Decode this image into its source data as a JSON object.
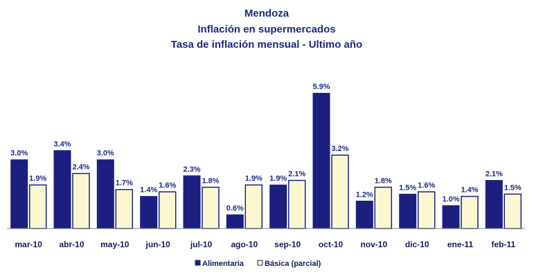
{
  "chart_data": {
    "type": "bar",
    "title": [
      "Mendoza",
      "Inflación en supermercados",
      "Tasa de inflación mensual  - Ultimo año"
    ],
    "categories": [
      "mar-10",
      "abr-10",
      "may-10",
      "jun-10",
      "jul-10",
      "ago-10",
      "sep-10",
      "oct-10",
      "nov-10",
      "dic-10",
      "ene-11",
      "feb-11"
    ],
    "series": [
      {
        "name": "Alimentaria",
        "values": [
          3.0,
          3.4,
          3.0,
          1.4,
          2.3,
          0.6,
          1.9,
          5.9,
          1.2,
          1.5,
          1.0,
          2.1
        ],
        "labels": [
          "3.0%",
          "3.4%",
          "3.0%",
          "1.4%",
          "2.3%",
          "0.6%",
          "1.9%",
          "5.9%",
          "1.2%",
          "1.5%",
          "1.0%",
          "2.1%"
        ],
        "color": "#1c1f7f"
      },
      {
        "name": "Básica (parcial)",
        "values": [
          1.9,
          2.4,
          1.7,
          1.6,
          1.8,
          1.9,
          2.1,
          3.2,
          1.8,
          1.6,
          1.4,
          1.5
        ],
        "labels": [
          "1.9%",
          "2.4%",
          "1.7%",
          "1.6%",
          "1.8%",
          "1.9%",
          "2.1%",
          "3.2%",
          "1.8%",
          "1.6%",
          "1.4%",
          "1.5%"
        ],
        "color": "#fbf7d0"
      }
    ],
    "ylim": [
      0,
      6.1
    ],
    "grid": false,
    "legend": "bottom",
    "xlabel": "",
    "ylabel": "",
    "colors": {
      "baseline": "#7f7f7f",
      "bar_outline": "#1c1f7f",
      "text": "#1c2a80"
    }
  }
}
